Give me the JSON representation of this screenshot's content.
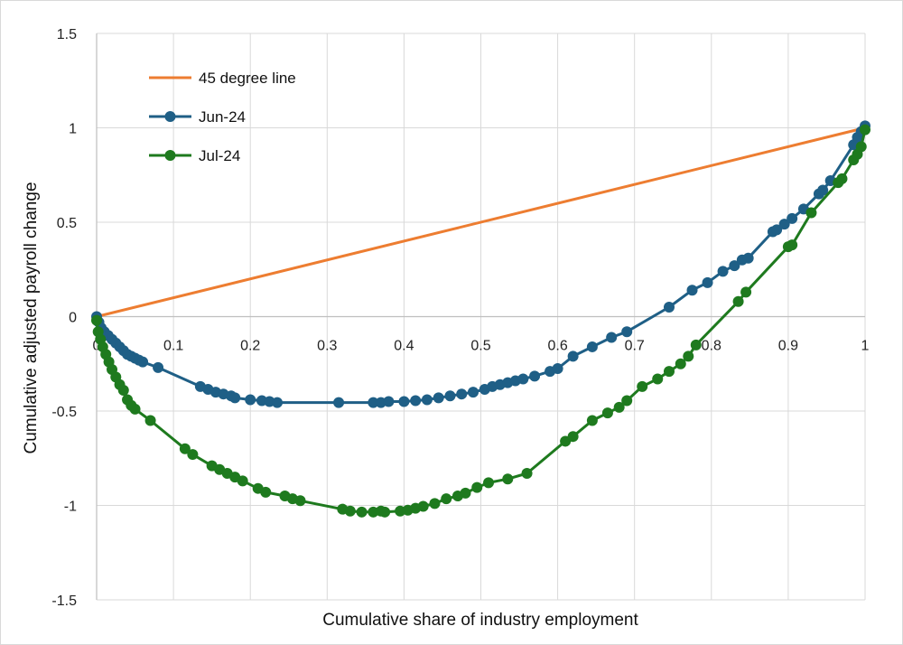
{
  "chart_data": {
    "type": "line",
    "xlabel": "Cumulative share of industry employment",
    "ylabel": "Cumulative adjusted payroll change",
    "xlim": [
      0,
      1
    ],
    "ylim": [
      -1.5,
      1.5
    ],
    "x_ticks": [
      0,
      0.1,
      0.2,
      0.3,
      0.4,
      0.5,
      0.6,
      0.7,
      0.8,
      0.9,
      1
    ],
    "x_tick_labels": [
      "0",
      "0.1",
      "0.2",
      "0.3",
      "0.4",
      "0.5",
      "0.6",
      "0.7",
      "0.8",
      "0.9",
      "1"
    ],
    "y_ticks": [
      -1.5,
      -1,
      -0.5,
      0,
      0.5,
      1,
      1.5
    ],
    "y_tick_labels": [
      "-1.5",
      "-1",
      "-0.5",
      "0",
      "0.5",
      "1",
      "1.5"
    ],
    "grid": true,
    "legend_position": "top-left",
    "series": [
      {
        "name": "45 degree line",
        "color": "#ED7D31",
        "markers": false,
        "x": [
          0,
          1
        ],
        "y": [
          0,
          1
        ]
      },
      {
        "name": "Jun-24",
        "color": "#1F5F86",
        "markers": true,
        "x": [
          0,
          0.003,
          0.006,
          0.01,
          0.015,
          0.02,
          0.025,
          0.03,
          0.035,
          0.04,
          0.045,
          0.05,
          0.055,
          0.06,
          0.08,
          0.135,
          0.145,
          0.155,
          0.165,
          0.175,
          0.18,
          0.2,
          0.215,
          0.225,
          0.235,
          0.315,
          0.36,
          0.37,
          0.38,
          0.4,
          0.415,
          0.43,
          0.445,
          0.46,
          0.475,
          0.49,
          0.505,
          0.515,
          0.525,
          0.535,
          0.545,
          0.555,
          0.57,
          0.59,
          0.6,
          0.62,
          0.645,
          0.67,
          0.69,
          0.745,
          0.775,
          0.795,
          0.815,
          0.83,
          0.84,
          0.848,
          0.88,
          0.885,
          0.895,
          0.905,
          0.92,
          0.94,
          0.945,
          0.955,
          0.985,
          0.99,
          0.995,
          1.0
        ],
        "y": [
          0,
          -0.03,
          -0.06,
          -0.08,
          -0.1,
          -0.12,
          -0.14,
          -0.16,
          -0.18,
          -0.2,
          -0.21,
          -0.22,
          -0.23,
          -0.24,
          -0.27,
          -0.37,
          -0.385,
          -0.4,
          -0.41,
          -0.42,
          -0.43,
          -0.44,
          -0.445,
          -0.45,
          -0.455,
          -0.455,
          -0.455,
          -0.455,
          -0.45,
          -0.45,
          -0.445,
          -0.44,
          -0.43,
          -0.42,
          -0.41,
          -0.4,
          -0.385,
          -0.37,
          -0.36,
          -0.35,
          -0.34,
          -0.33,
          -0.315,
          -0.29,
          -0.275,
          -0.21,
          -0.16,
          -0.11,
          -0.08,
          0.05,
          0.14,
          0.18,
          0.24,
          0.27,
          0.3,
          0.31,
          0.45,
          0.46,
          0.49,
          0.52,
          0.57,
          0.65,
          0.67,
          0.72,
          0.91,
          0.95,
          0.98,
          1.01
        ]
      },
      {
        "name": "Jul-24",
        "color": "#1E7A1E",
        "markers": true,
        "x": [
          0,
          0.002,
          0.005,
          0.008,
          0.012,
          0.016,
          0.02,
          0.025,
          0.03,
          0.035,
          0.04,
          0.045,
          0.05,
          0.07,
          0.115,
          0.125,
          0.15,
          0.16,
          0.17,
          0.18,
          0.19,
          0.21,
          0.22,
          0.245,
          0.255,
          0.265,
          0.32,
          0.33,
          0.345,
          0.36,
          0.37,
          0.375,
          0.395,
          0.405,
          0.415,
          0.425,
          0.44,
          0.455,
          0.47,
          0.48,
          0.495,
          0.51,
          0.535,
          0.56,
          0.61,
          0.62,
          0.645,
          0.665,
          0.68,
          0.69,
          0.71,
          0.73,
          0.745,
          0.76,
          0.77,
          0.78,
          0.835,
          0.845,
          0.9,
          0.905,
          0.93,
          0.965,
          0.97,
          0.985,
          0.99,
          0.995,
          1.0
        ],
        "y": [
          -0.02,
          -0.08,
          -0.12,
          -0.16,
          -0.2,
          -0.24,
          -0.28,
          -0.32,
          -0.36,
          -0.39,
          -0.44,
          -0.47,
          -0.49,
          -0.55,
          -0.7,
          -0.73,
          -0.79,
          -0.81,
          -0.83,
          -0.85,
          -0.87,
          -0.91,
          -0.93,
          -0.95,
          -0.965,
          -0.975,
          -1.02,
          -1.03,
          -1.035,
          -1.035,
          -1.03,
          -1.035,
          -1.03,
          -1.025,
          -1.015,
          -1.005,
          -0.99,
          -0.965,
          -0.95,
          -0.935,
          -0.905,
          -0.88,
          -0.86,
          -0.83,
          -0.66,
          -0.635,
          -0.55,
          -0.51,
          -0.48,
          -0.445,
          -0.37,
          -0.33,
          -0.29,
          -0.25,
          -0.21,
          -0.15,
          0.08,
          0.13,
          0.37,
          0.38,
          0.55,
          0.71,
          0.73,
          0.83,
          0.86,
          0.9,
          0.99
        ]
      }
    ]
  }
}
